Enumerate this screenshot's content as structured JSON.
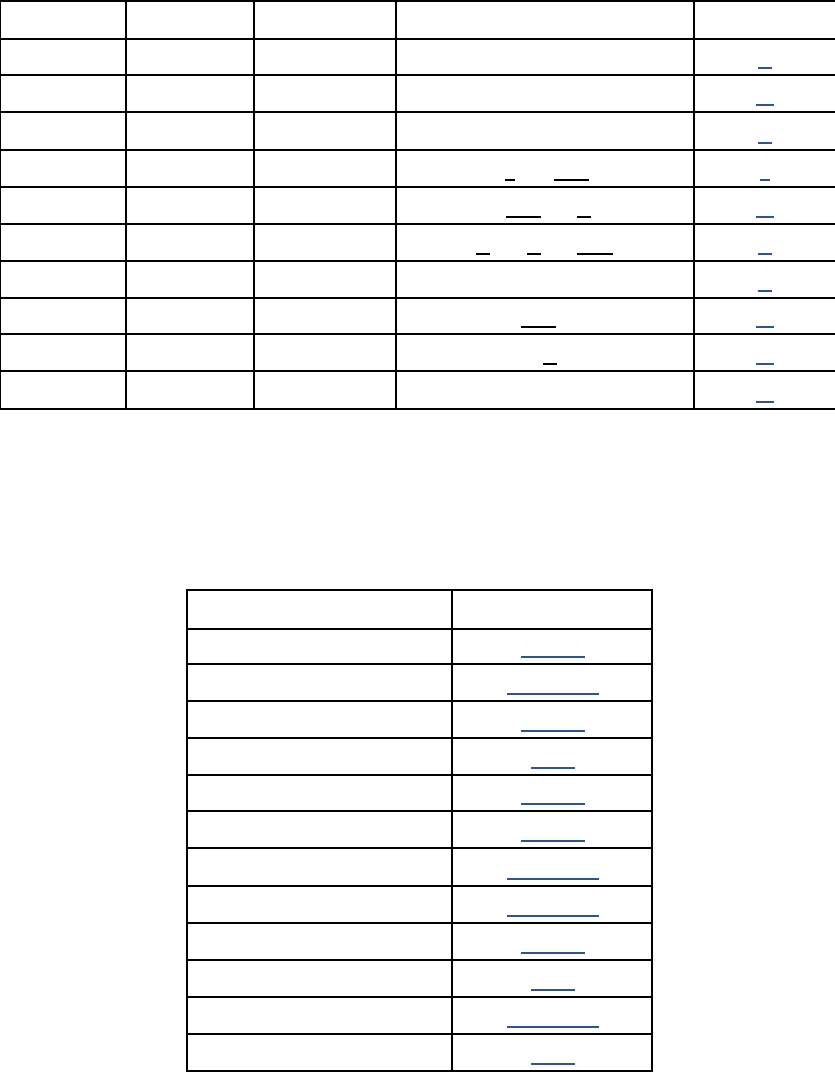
{
  "colors": {
    "link": "#2f5496",
    "border": "#000000",
    "background": "#ffffff"
  },
  "table_1": {
    "columns": 5,
    "rows": 11
  },
  "table_2": {
    "columns": 2,
    "rows": 13
  }
}
